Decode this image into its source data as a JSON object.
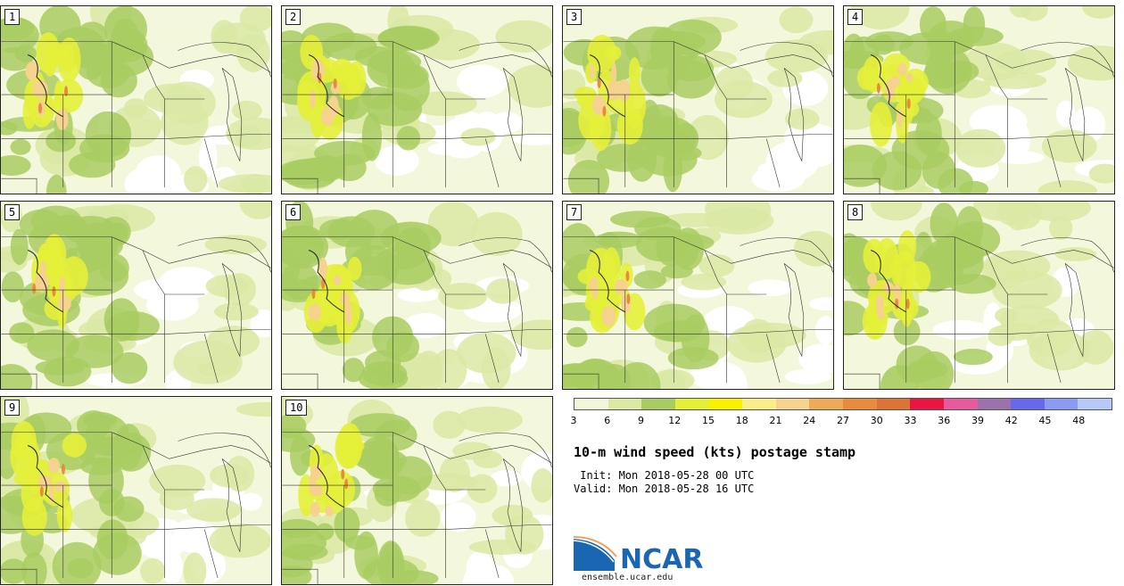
{
  "panels": [
    {
      "label": "1"
    },
    {
      "label": "2"
    },
    {
      "label": "3"
    },
    {
      "label": "4"
    },
    {
      "label": "5"
    },
    {
      "label": "6"
    },
    {
      "label": "7"
    },
    {
      "label": "8"
    },
    {
      "label": "9"
    },
    {
      "label": "10"
    }
  ],
  "colorbar": {
    "colors": [
      "#f2f6dc",
      "#dbe9a4",
      "#a9cc62",
      "#e4ef38",
      "#f8f100",
      "#fbee88",
      "#f5d28d",
      "#eeaa55",
      "#e98a3c",
      "#dd7436",
      "#ec1443",
      "#e55b9c",
      "#9b72ac",
      "#6868ee",
      "#8a9af5",
      "#b7c9f7"
    ],
    "ticks": [
      "3",
      "6",
      "9",
      "12",
      "15",
      "18",
      "21",
      "24",
      "27",
      "30",
      "33",
      "36",
      "39",
      "42",
      "45",
      "48"
    ]
  },
  "title": "10-m wind speed (kts) postage stamp",
  "init": " Init: Mon 2018-05-28 00 UTC",
  "valid": "Valid: Mon 2018-05-28 16 UTC",
  "logo": {
    "text": "NCAR",
    "url": "ensemble.ucar.edu"
  }
}
